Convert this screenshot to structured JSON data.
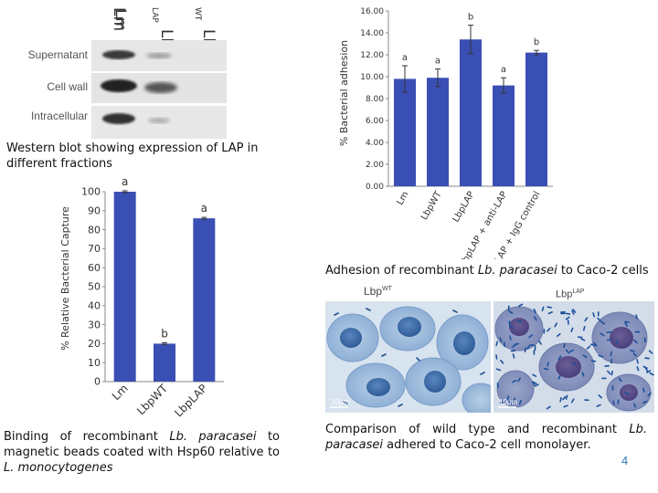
{
  "western_blot": {
    "lanes": [
      "Lm",
      "Lbp",
      "Lbp"
    ],
    "lane_superscripts": [
      "LAP",
      "",
      "WT"
    ],
    "rows": [
      "Supernatant",
      "Cell wall",
      "Intracellular"
    ],
    "caption": "Western blot showing expression of LAP in different fractions"
  },
  "capture_chart": {
    "caption_prefix": "Binding of recombinant ",
    "caption_italic": "Lb. paracasei",
    "caption_mid": " to magnetic beads coated with Hsp60 relative to ",
    "caption_italic2": "L. monocytogenes"
  },
  "adhesion_chart": {
    "caption_prefix": "Adhesion of recombinant ",
    "caption_italic": "Lb. paracasei",
    "caption_suffix": " to Caco-2 cells"
  },
  "micrographs": {
    "left_label": "Lbp",
    "left_sup": "WT",
    "right_label": "Lbp",
    "right_sup": "LAP",
    "scale_left": "10μm",
    "scale_right": "10μm",
    "caption_prefix": "Comparison of wild type and recombinant ",
    "caption_italic": "Lb. paracasei",
    "caption_suffix": " adhered to Caco-2 cell monolayer."
  },
  "page_number": "4",
  "colors": {
    "bar": "#3a4fb4",
    "page_number": "#2e75b6"
  },
  "chart_data": [
    {
      "type": "bar",
      "categories": [
        "Lm",
        "LbpWT",
        "LbpLAP"
      ],
      "values": [
        100,
        20,
        86
      ],
      "errors": [
        0.5,
        0.5,
        0.5
      ],
      "annotations": [
        "a",
        "b",
        "a"
      ],
      "ylabel": "% Relative Bacterial Capture",
      "ylim": [
        0,
        100
      ],
      "yticks": [
        "0",
        "10",
        "20",
        "30",
        "40",
        "50",
        "60",
        "70",
        "80",
        "90",
        "100"
      ]
    },
    {
      "type": "bar",
      "categories": [
        "Lm",
        "LbpWT",
        "LbpLAP",
        "LbpLAP + anti-LAP",
        "LbpLAP + IgG control"
      ],
      "values": [
        9.8,
        9.9,
        13.4,
        9.2,
        12.2
      ],
      "errors": [
        1.2,
        0.8,
        1.3,
        0.7,
        0.2
      ],
      "annotations": [
        "a",
        "a",
        "b",
        "a",
        "b"
      ],
      "ylabel": "% Bacterial adhesion",
      "ylim": [
        0,
        16
      ],
      "yticks": [
        "0.00",
        "2.00",
        "4.00",
        "6.00",
        "8.00",
        "10.00",
        "12.00",
        "14.00",
        "16.00"
      ]
    }
  ]
}
